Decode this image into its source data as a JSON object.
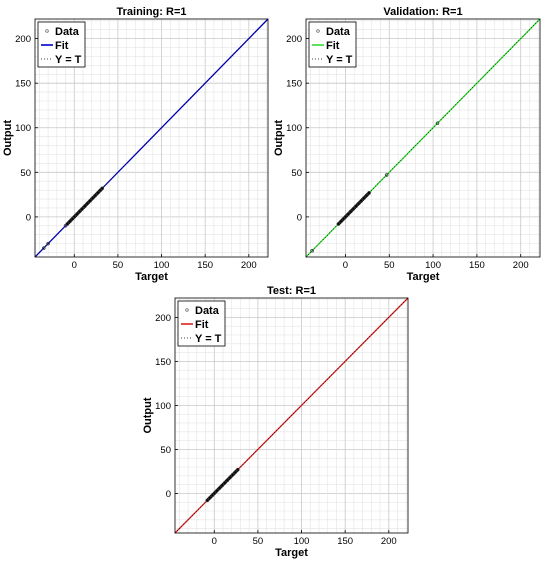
{
  "chart_data": [
    {
      "type": "scatter",
      "title": "Training: R=1",
      "xlabel": "Target",
      "ylabel": "Output",
      "xlim": [
        -45,
        222
      ],
      "ylim": [
        -45,
        222
      ],
      "xticks": [
        0,
        50,
        100,
        150,
        200
      ],
      "yticks": [
        0,
        50,
        100,
        150,
        200
      ],
      "grid": true,
      "legend_position": "top-left",
      "legend": [
        "Data",
        "Fit",
        "Y = T"
      ],
      "fit_color": "#0000cc",
      "data_points": [
        [
          -35,
          -35
        ],
        [
          -30,
          -30
        ],
        [
          -10,
          -10
        ],
        [
          -8,
          -8
        ],
        [
          -5,
          -5
        ],
        [
          -2,
          -2
        ],
        [
          0,
          0
        ],
        [
          3,
          3
        ],
        [
          6,
          6
        ],
        [
          9,
          9
        ],
        [
          12,
          12
        ],
        [
          15,
          15
        ],
        [
          18,
          18
        ],
        [
          21,
          21
        ],
        [
          24,
          24
        ],
        [
          27,
          27
        ],
        [
          30,
          30
        ],
        [
          32,
          32
        ]
      ],
      "fit": {
        "slope": 1,
        "intercept": 0
      }
    },
    {
      "type": "scatter",
      "title": "Validation: R=1",
      "xlabel": "Target",
      "ylabel": "Output",
      "xlim": [
        -45,
        222
      ],
      "ylim": [
        -45,
        222
      ],
      "xticks": [
        0,
        50,
        100,
        150,
        200
      ],
      "yticks": [
        0,
        50,
        100,
        150,
        200
      ],
      "grid": true,
      "legend_position": "top-left",
      "legend": [
        "Data",
        "Fit",
        "Y = T"
      ],
      "fit_color": "#33dd33",
      "data_points": [
        [
          -38,
          -38
        ],
        [
          -8,
          -8
        ],
        [
          -5,
          -5
        ],
        [
          -2,
          -2
        ],
        [
          0,
          0
        ],
        [
          3,
          3
        ],
        [
          6,
          6
        ],
        [
          9,
          9
        ],
        [
          12,
          12
        ],
        [
          15,
          15
        ],
        [
          18,
          18
        ],
        [
          21,
          21
        ],
        [
          24,
          24
        ],
        [
          27,
          27
        ],
        [
          47,
          47
        ],
        [
          105,
          105
        ]
      ],
      "fit": {
        "slope": 1,
        "intercept": 0
      }
    },
    {
      "type": "scatter",
      "title": "Test: R=1",
      "xlabel": "Target",
      "ylabel": "Output",
      "xlim": [
        -45,
        222
      ],
      "ylim": [
        -45,
        222
      ],
      "xticks": [
        0,
        50,
        100,
        150,
        200
      ],
      "yticks": [
        0,
        50,
        100,
        150,
        200
      ],
      "grid": true,
      "legend_position": "top-left",
      "legend": [
        "Data",
        "Fit",
        "Y = T"
      ],
      "fit_color": "#dd2222",
      "data_points": [
        [
          -8,
          -8
        ],
        [
          -5,
          -5
        ],
        [
          -2,
          -2
        ],
        [
          0,
          0
        ],
        [
          3,
          3
        ],
        [
          6,
          6
        ],
        [
          9,
          9
        ],
        [
          12,
          12
        ],
        [
          15,
          15
        ],
        [
          18,
          18
        ],
        [
          21,
          21
        ],
        [
          24,
          24
        ],
        [
          27,
          27
        ]
      ],
      "fit": {
        "slope": 1,
        "intercept": 0
      }
    }
  ]
}
